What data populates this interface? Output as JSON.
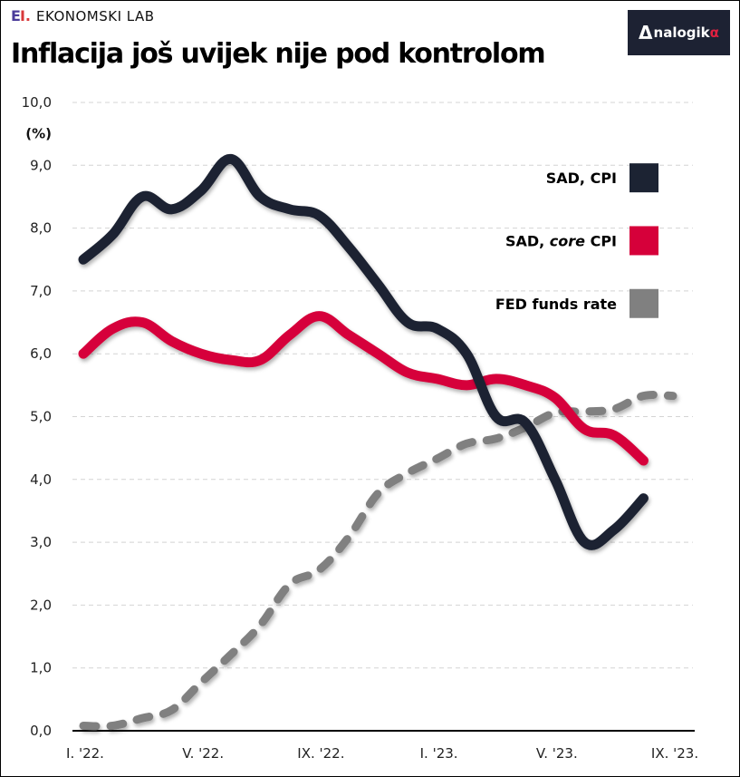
{
  "header": {
    "brand_mark_e": "E",
    "brand_mark_l": "I.",
    "brand_name": "EKONOMSKI LAB",
    "title": "Inflacija još uvijek nije pod kontrolom",
    "partner_logo": {
      "prefix": "Δ",
      "text": "nalogik",
      "suffix": "α"
    }
  },
  "chart_data": {
    "type": "line",
    "title": "Inflacija još uvijek nije pod kontrolom",
    "xlabel": "",
    "ylabel": "(%)",
    "ylim": [
      0,
      10
    ],
    "yticks": [
      0,
      1,
      2,
      3,
      4,
      5,
      6,
      7,
      8,
      9,
      10
    ],
    "ytick_labels": [
      "0,0",
      "1,0",
      "2,0",
      "3,0",
      "4,0",
      "5,0",
      "6,0",
      "7,0",
      "8,0",
      "9,0",
      "10,0"
    ],
    "x_months": [
      "2022-01",
      "2022-02",
      "2022-03",
      "2022-04",
      "2022-05",
      "2022-06",
      "2022-07",
      "2022-08",
      "2022-09",
      "2022-10",
      "2022-11",
      "2022-12",
      "2023-01",
      "2023-02",
      "2023-03",
      "2023-04",
      "2023-05",
      "2023-06",
      "2023-07",
      "2023-08",
      "2023-09"
    ],
    "xticks": [
      {
        "month_index": 0,
        "label": "I. '22."
      },
      {
        "month_index": 4,
        "label": "V. '22."
      },
      {
        "month_index": 8,
        "label": "IX. '22."
      },
      {
        "month_index": 12,
        "label": "I. '23."
      },
      {
        "month_index": 16,
        "label": "V. '23."
      },
      {
        "month_index": 20,
        "label": "IX. '23."
      }
    ],
    "grid": true,
    "legend_position": "top-right",
    "series": [
      {
        "name": "SAD, CPI",
        "color": "#1c2333",
        "style": "solid",
        "values": [
          7.5,
          7.9,
          8.5,
          8.3,
          8.6,
          9.1,
          8.5,
          8.3,
          8.2,
          7.7,
          7.1,
          6.5,
          6.4,
          6.0,
          5.0,
          4.9,
          4.0,
          3.0,
          3.2,
          3.7
        ]
      },
      {
        "name": "SAD, core CPI",
        "name_parts": [
          "SAD, ",
          "core",
          " CPI"
        ],
        "color": "#d6003a",
        "style": "solid",
        "values": [
          6.0,
          6.4,
          6.5,
          6.2,
          6.0,
          5.9,
          5.9,
          6.3,
          6.6,
          6.3,
          6.0,
          5.7,
          5.6,
          5.5,
          5.6,
          5.5,
          5.3,
          4.8,
          4.7,
          4.3
        ]
      },
      {
        "name": "FED funds rate",
        "color": "#808080",
        "style": "dashed",
        "values": [
          0.08,
          0.08,
          0.2,
          0.33,
          0.77,
          1.21,
          1.68,
          2.33,
          2.56,
          3.08,
          3.78,
          4.1,
          4.33,
          4.57,
          4.65,
          4.83,
          5.06,
          5.08,
          5.12,
          5.33,
          5.33
        ]
      }
    ]
  }
}
